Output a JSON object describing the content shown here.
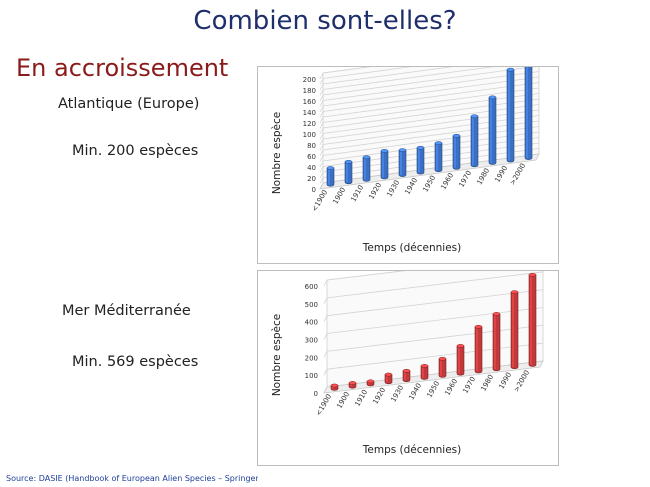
{
  "slide": {
    "title": "Combien sont-elles?",
    "subtitle": "En accroissement",
    "atlantic_label": "Atlantique (Europe)",
    "atlantic_count": "Min. 200 espèces",
    "med_label": "Mer Méditerranée",
    "med_count": "Min. 569 espèces",
    "source": "Source: DASIE (Handbook of European Alien Species – Springer)"
  },
  "chart_data": [
    {
      "type": "bar",
      "categories": [
        "<1900",
        "1900",
        "1910",
        "1920",
        "1930",
        "1940",
        "1950",
        "1960",
        "1970",
        "1980",
        "1990",
        ">2000"
      ],
      "values": [
        30,
        37,
        41,
        48,
        45,
        45,
        49,
        58,
        89,
        119,
        165,
        180
      ],
      "xlabel": "Temps (décennies)",
      "ylabel": "Nombre espèce",
      "ylim": [
        0,
        200
      ],
      "yticks": [
        0,
        10,
        20,
        30,
        40,
        50,
        60,
        70,
        80,
        90,
        100,
        110,
        120,
        130,
        140,
        150,
        160,
        170,
        180,
        190,
        200
      ],
      "ytick_labels": [
        "0",
        "",
        "20",
        "",
        "40",
        "",
        "60",
        "",
        "80",
        "",
        "100",
        "",
        "120",
        "",
        "140",
        "",
        "160",
        "",
        "180",
        "",
        "200"
      ],
      "color": "#3b6fc4",
      "grid": true
    },
    {
      "type": "bar",
      "categories": [
        "<1900",
        "1900",
        "1910",
        "1920",
        "1930",
        "1940",
        "1950",
        "1960",
        "1970",
        "1980",
        "1990",
        ">2000"
      ],
      "values": [
        18,
        20,
        17,
        43,
        52,
        67,
        95,
        155,
        250,
        310,
        420,
        505
      ],
      "xlabel": "Temps (décennies)",
      "ylabel": "Nombre espèce",
      "ylim": [
        0,
        600
      ],
      "yticks": [
        0,
        100,
        200,
        300,
        400,
        500,
        600
      ],
      "ytick_labels": [
        "0",
        "100",
        "200",
        "300",
        "400",
        "500",
        "600"
      ],
      "color": "#c0393b",
      "grid": true
    }
  ]
}
